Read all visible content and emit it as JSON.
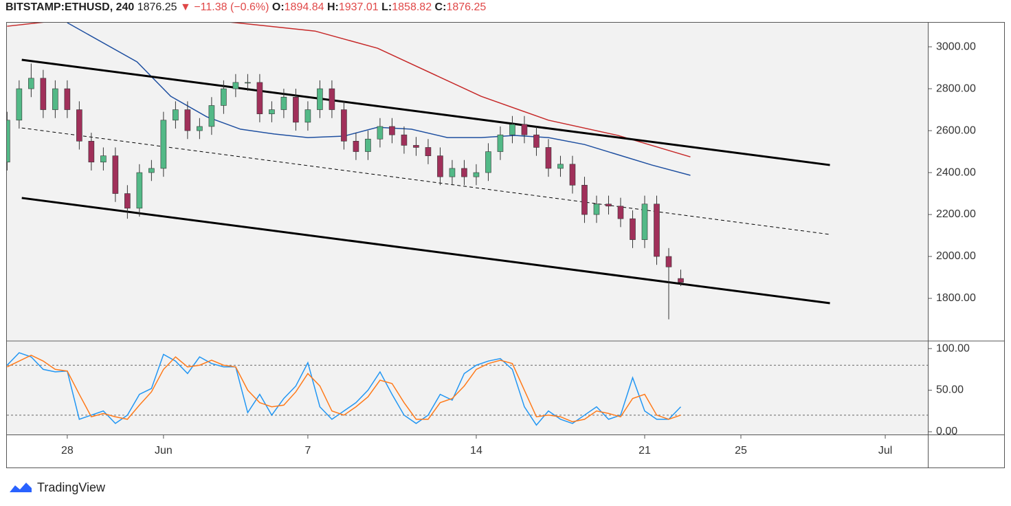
{
  "header": {
    "symbol": "BITSTAMP:ETHUSD, 240",
    "last": 1876.25,
    "change": "▼ −11.38 (−0.6%)",
    "o_label": "O:",
    "o": 1894.84,
    "h_label": "H:",
    "h": 1937.01,
    "l_label": "L:",
    "l": 1858.82,
    "c_label": "C:",
    "c": 1876.25
  },
  "footer": {
    "brand": "TradingView"
  },
  "chart_data": [
    {
      "type": "candlestick",
      "up_color": "#53b987",
      "down_color": "#a0305a",
      "edge_color": "#333333",
      "x": [
        -2.5,
        -2,
        -1.5,
        -1,
        -0.5,
        0,
        0.5,
        1,
        1.5,
        2,
        2.5,
        3,
        3.5,
        4,
        4.5,
        5,
        5.5,
        6,
        6.5,
        7,
        7.5,
        8,
        8.5,
        9,
        9.5,
        10,
        10.5,
        11,
        11.5,
        12,
        12.5,
        13,
        13.5,
        14,
        14.5,
        15,
        15.5,
        16,
        16.5,
        17,
        17.5,
        18,
        18.5,
        19,
        19.5,
        20,
        20.5,
        21,
        21.5,
        22,
        22.5,
        23,
        23.5,
        24,
        24.5,
        25,
        25.5
      ],
      "open": [
        2450,
        2650,
        2800,
        2850,
        2700,
        2800,
        2700,
        2550,
        2450,
        2480,
        2300,
        2230,
        2400,
        2420,
        2650,
        2700,
        2600,
        2620,
        2720,
        2800,
        2830,
        2830,
        2680,
        2700,
        2760,
        2640,
        2700,
        2800,
        2700,
        2550,
        2500,
        2560,
        2620,
        2580,
        2530,
        2520,
        2480,
        2380,
        2420,
        2380,
        2400,
        2500,
        2580,
        2630,
        2580,
        2520,
        2420,
        2440,
        2340,
        2200,
        2250,
        2240,
        2180,
        2080,
        2250,
        2000,
        1894.84
      ],
      "high": [
        2690,
        2840,
        2920,
        2890,
        2840,
        2840,
        2740,
        2590,
        2520,
        2520,
        2340,
        2440,
        2460,
        2690,
        2740,
        2740,
        2660,
        2760,
        2840,
        2870,
        2870,
        2870,
        2740,
        2800,
        2800,
        2740,
        2840,
        2840,
        2740,
        2590,
        2600,
        2660,
        2660,
        2620,
        2570,
        2560,
        2520,
        2460,
        2460,
        2440,
        2540,
        2620,
        2670,
        2670,
        2620,
        2560,
        2480,
        2480,
        2380,
        2290,
        2290,
        2280,
        2220,
        2290,
        2290,
        2040,
        1937.01
      ],
      "low": [
        2410,
        2610,
        2760,
        2660,
        2660,
        2660,
        2510,
        2410,
        2410,
        2260,
        2180,
        2190,
        2360,
        2380,
        2610,
        2560,
        2560,
        2580,
        2680,
        2760,
        2790,
        2640,
        2640,
        2660,
        2600,
        2600,
        2660,
        2660,
        2510,
        2460,
        2460,
        2520,
        2540,
        2490,
        2480,
        2440,
        2340,
        2340,
        2340,
        2340,
        2360,
        2460,
        2540,
        2540,
        2480,
        2380,
        2380,
        2300,
        2160,
        2160,
        2200,
        2140,
        2040,
        2040,
        1960,
        1700,
        1858.82
      ],
      "close": [
        2650,
        2800,
        2850,
        2700,
        2800,
        2700,
        2550,
        2450,
        2480,
        2300,
        2230,
        2400,
        2420,
        2650,
        2700,
        2600,
        2620,
        2720,
        2800,
        2830,
        2830,
        2680,
        2700,
        2760,
        2640,
        2700,
        2800,
        2700,
        2550,
        2500,
        2560,
        2620,
        2580,
        2530,
        2520,
        2480,
        2380,
        2420,
        2380,
        2400,
        2500,
        2580,
        2630,
        2580,
        2520,
        2420,
        2440,
        2340,
        2200,
        2250,
        2240,
        2180,
        2080,
        2250,
        2000,
        1950,
        1876.25
      ],
      "lines": [
        {
          "color": "#c62828",
          "x": [
            -2.5,
            0,
            4,
            7,
            10.3,
            12.9,
            17.2,
            20,
            22.9,
            25.9
          ],
          "values": [
            3098,
            3130,
            3150,
            3115,
            3075,
            2993,
            2764,
            2650,
            2577,
            2475
          ]
        },
        {
          "color": "#1e4fa0",
          "x": [
            0,
            2.9,
            4.3,
            5.8,
            7.2,
            8.6,
            10,
            11.5,
            12.9,
            14.3,
            15.8,
            17.2,
            18.6,
            20,
            21.5,
            22.9,
            24.3,
            25.9
          ],
          "values": [
            3115,
            2928,
            2764,
            2666,
            2607,
            2584,
            2567,
            2574,
            2616,
            2607,
            2567,
            2567,
            2577,
            2567,
            2534,
            2485,
            2436,
            2387
          ]
        }
      ],
      "trend_lines": [
        {
          "dash": false,
          "x": [
            -1.89,
            31.7
          ],
          "y": [
            2938,
            2436
          ]
        },
        {
          "dash": true,
          "x": [
            -1.89,
            31.7
          ],
          "y": [
            2613,
            2105
          ]
        },
        {
          "dash": false,
          "x": [
            -1.89,
            31.7
          ],
          "y": [
            2279,
            1777
          ]
        }
      ],
      "xlim": [
        -2.51,
        35.77
      ],
      "ylim": [
        1600,
        3115
      ],
      "yticks": [
        {
          "value": 1800,
          "label": "1800.00"
        },
        {
          "value": 2000,
          "label": "2000.00"
        },
        {
          "value": 2200,
          "label": "2200.00"
        },
        {
          "value": 2400,
          "label": "2400.00"
        },
        {
          "value": 2600,
          "label": "2600.00"
        },
        {
          "value": 2800,
          "label": "2800.00"
        },
        {
          "value": 3000,
          "label": "3000.00"
        }
      ]
    },
    {
      "type": "line",
      "xlim": [
        -2.51,
        35.77
      ],
      "ylim": [
        -3.3,
        108.3
      ],
      "levels": [
        80,
        20
      ],
      "x": [
        -2.5,
        -2,
        -1.5,
        -1,
        -0.5,
        0,
        0.5,
        1,
        1.5,
        2,
        2.5,
        3,
        3.5,
        4,
        4.5,
        5,
        5.5,
        6,
        6.5,
        7,
        7.5,
        8,
        8.5,
        9,
        9.5,
        10,
        10.5,
        11,
        11.5,
        12,
        12.5,
        13,
        13.5,
        14,
        14.5,
        15,
        15.5,
        16,
        16.5,
        17,
        17.5,
        18,
        18.5,
        19,
        19.5,
        20,
        20.5,
        21,
        21.5,
        22,
        22.5,
        23,
        23.5,
        24,
        24.5,
        25,
        25.5
      ],
      "series": [
        {
          "color": "#2196f3",
          "values": [
            80,
            95,
            90,
            75,
            72,
            73,
            15,
            20,
            25,
            10,
            20,
            45,
            52,
            93,
            85,
            70,
            90,
            82,
            78,
            78,
            23,
            45,
            20,
            40,
            55,
            83,
            30,
            15,
            25,
            35,
            50,
            72,
            45,
            20,
            10,
            20,
            45,
            38,
            70,
            80,
            85,
            88,
            75,
            30,
            8,
            25,
            15,
            10,
            20,
            30,
            15,
            20,
            65,
            25,
            15,
            15,
            30
          ]
        },
        {
          "color": "#ff7a1a",
          "values": [
            78,
            85,
            92,
            85,
            75,
            73,
            45,
            18,
            22,
            18,
            15,
            32,
            48,
            75,
            90,
            78,
            80,
            86,
            80,
            78,
            50,
            35,
            30,
            32,
            48,
            70,
            55,
            25,
            20,
            30,
            42,
            62,
            58,
            35,
            15,
            15,
            35,
            40,
            55,
            75,
            82,
            86,
            82,
            50,
            18,
            20,
            18,
            12,
            15,
            25,
            22,
            18,
            40,
            45,
            20,
            15,
            20
          ]
        }
      ],
      "yticks": [
        {
          "value": 0,
          "label": "0.00"
        },
        {
          "value": 50,
          "label": "50.00"
        },
        {
          "value": 100,
          "label": "100.00"
        }
      ],
      "xticks": [
        {
          "value": 0,
          "label": "28"
        },
        {
          "value": 4,
          "label": "Jun"
        },
        {
          "value": 10,
          "label": "7"
        },
        {
          "value": 17,
          "label": "14"
        },
        {
          "value": 24,
          "label": "21"
        },
        {
          "value": 28,
          "label": "25"
        },
        {
          "value": 34,
          "label": "Jul"
        }
      ]
    }
  ]
}
